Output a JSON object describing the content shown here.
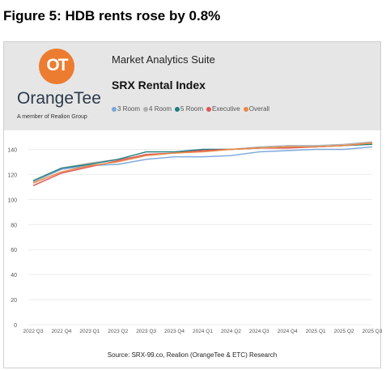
{
  "figure_title": "Figure 5: HDB rents rose by 0.8%",
  "header": {
    "logo_letters": "OT",
    "brand_name": "OrangeTee",
    "brand_tagline": "A member of Realion Group",
    "suite_name": "Market Analytics Suite"
  },
  "source": "Source: SRX-99.co, Realion (OrangeTee & ETC) Research",
  "chart_data": {
    "type": "line",
    "title": "SRX Rental Index",
    "categories": [
      "2022 Q3",
      "2022 Q4",
      "2023 Q1",
      "2023 Q2",
      "2023 Q3",
      "2023 Q4",
      "2024 Q1",
      "2024 Q2",
      "2024 Q3",
      "2024 Q4",
      "2025 Q1",
      "2025 Q2",
      "2025 Q3"
    ],
    "ylim": [
      0,
      150
    ],
    "yticks": [
      0,
      20,
      40,
      60,
      80,
      100,
      120,
      140
    ],
    "grid": true,
    "legend_position": "top",
    "series": [
      {
        "name": "3 Room",
        "color": "#7aa6dc",
        "values": [
          114,
          124,
          127,
          128,
          132,
          134,
          134,
          135,
          138,
          139,
          140,
          140,
          142
        ]
      },
      {
        "name": "4 Room",
        "color": "#b0b0b0",
        "values": [
          114,
          125,
          129,
          132,
          135,
          137,
          139,
          140,
          142,
          143,
          143,
          144,
          146
        ]
      },
      {
        "name": "5 Room",
        "color": "#1f7f7f",
        "values": [
          115,
          125,
          128,
          132,
          138,
          138,
          140,
          140,
          141,
          142,
          142,
          143,
          144
        ]
      },
      {
        "name": "Executive",
        "color": "#e05555",
        "values": [
          111,
          121,
          126,
          131,
          136,
          137,
          139,
          140,
          141,
          141,
          142,
          143,
          145
        ]
      },
      {
        "name": "Overall",
        "color": "#ec8a45",
        "values": [
          113,
          122,
          127,
          130,
          135,
          137,
          138,
          140,
          141,
          142,
          142,
          143,
          145
        ]
      }
    ]
  }
}
